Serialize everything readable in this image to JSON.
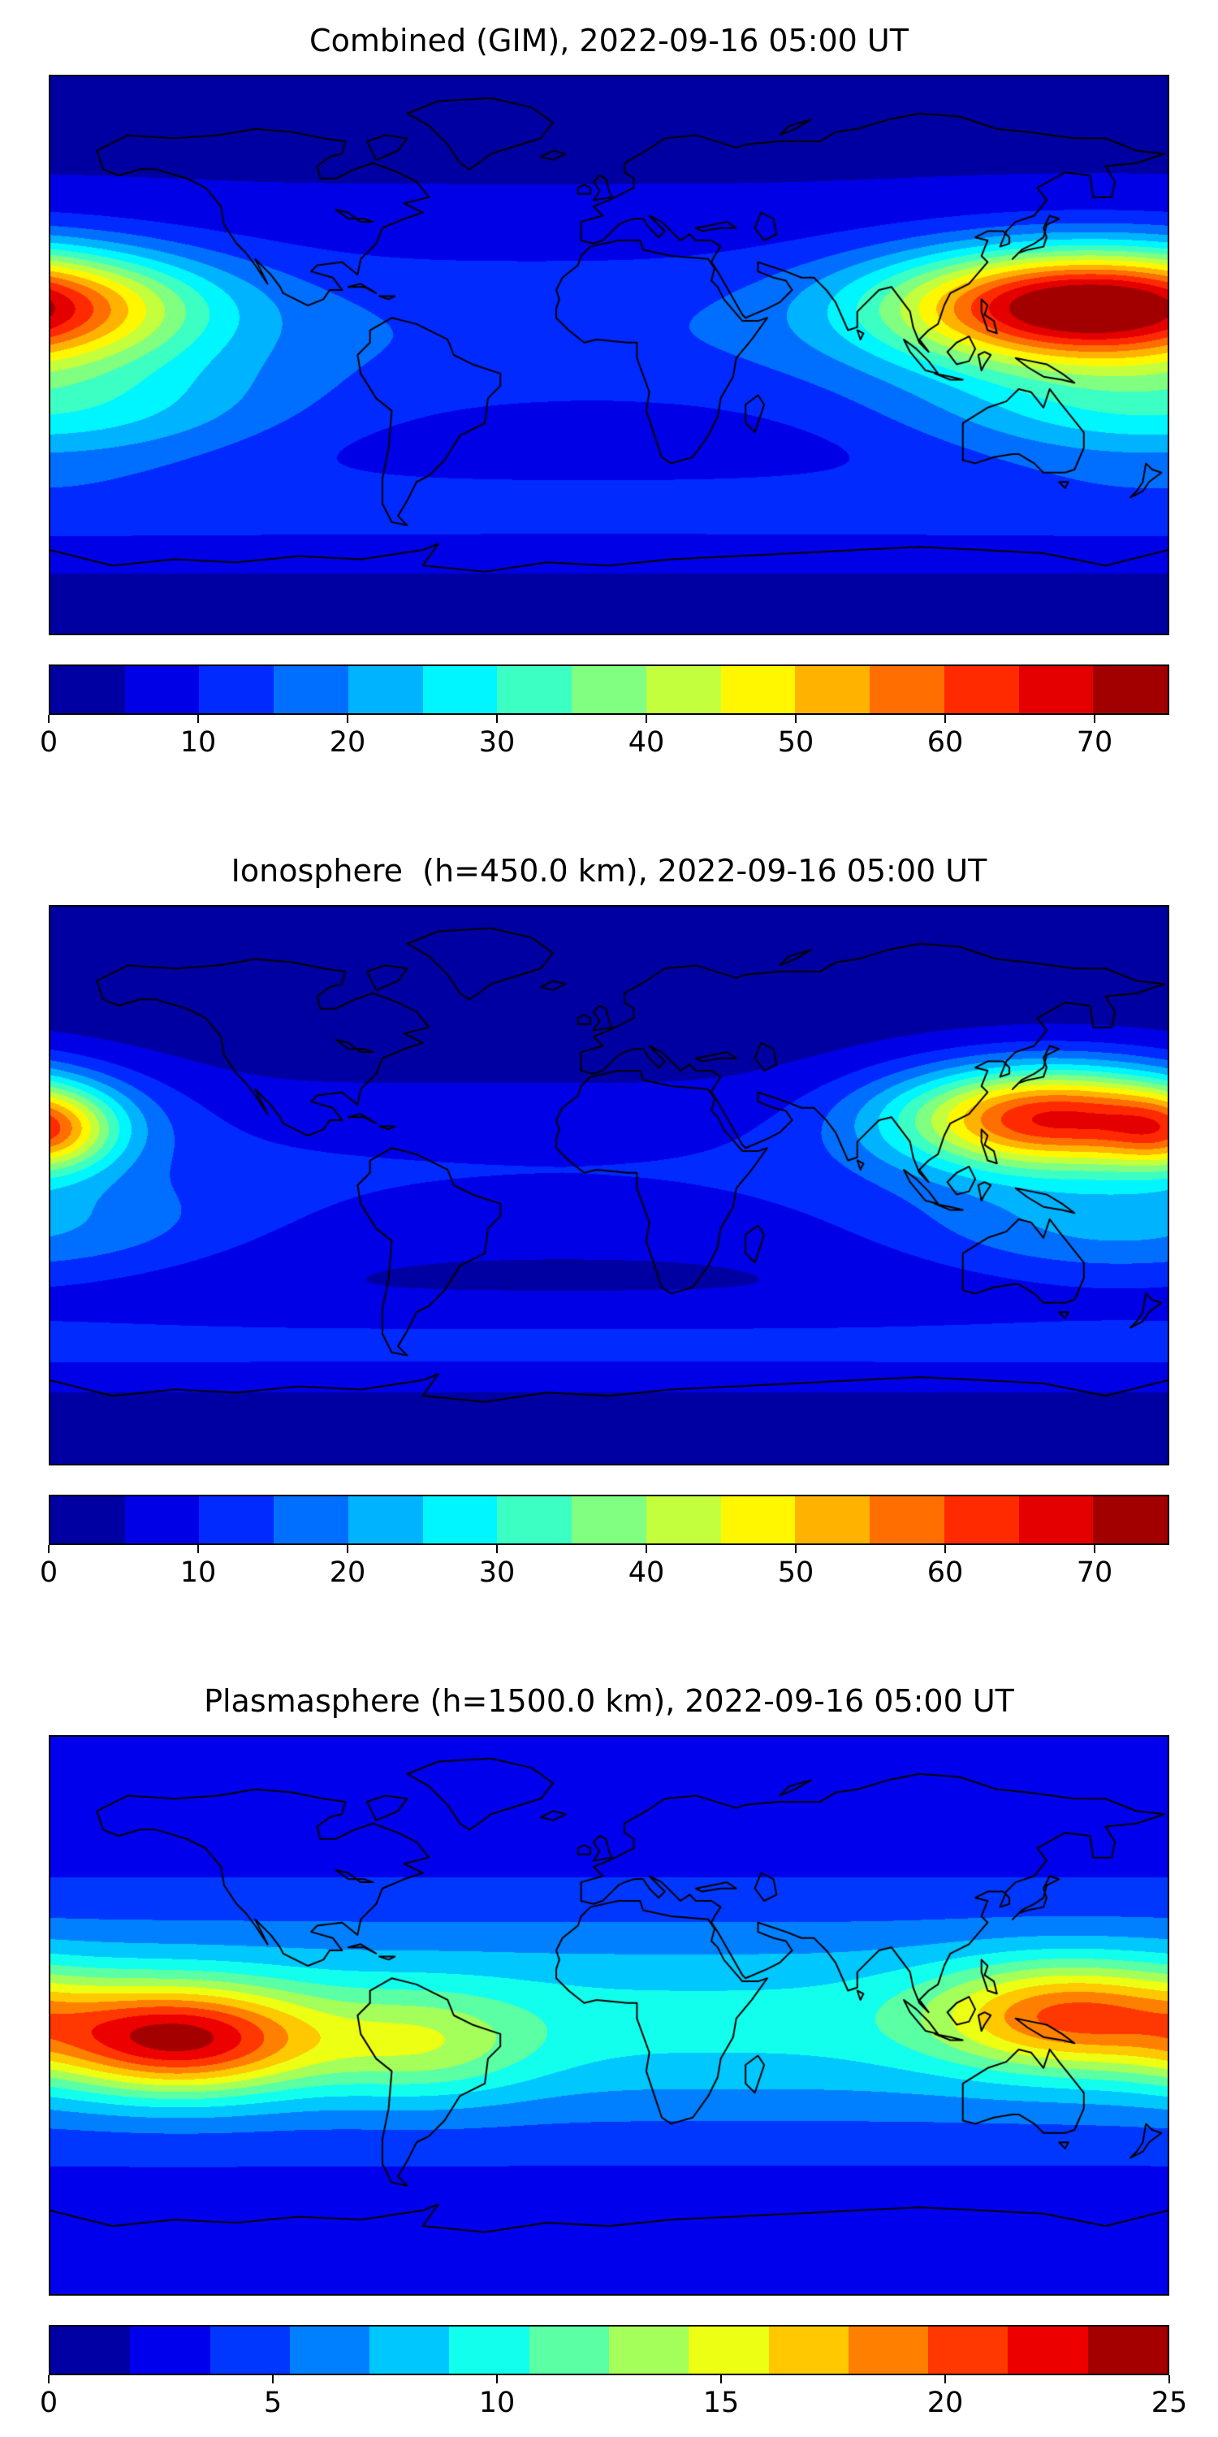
{
  "page": {
    "background": "#ffffff",
    "text_color": "#000000"
  },
  "chart_data": [
    {
      "type": "heatmap",
      "subtype": "filled-contour-world-map",
      "title": "Combined (GIM), 2022-09-16 05:00 UT",
      "projection": "equirectangular",
      "lon_range": [
        -180,
        180
      ],
      "lat_range": [
        -90,
        90
      ],
      "colormap": "jet",
      "coastlines": true,
      "grid": false,
      "vmin": 0,
      "vmax": 75,
      "n_bands": 15,
      "colorbar_orientation": "horizontal",
      "colorbar_ticks": [
        0,
        10,
        20,
        30,
        40,
        50,
        60,
        70
      ],
      "field": {
        "base": 4,
        "blobs": [
          {
            "amp": 66,
            "lon": 155,
            "lat": 16,
            "slon": 45,
            "slat": 13,
            "feature": "dayside equatorial-anomaly maximum over East Asia / West Pacific, peak above 75"
          },
          {
            "amp": 10,
            "lon": 0,
            "lat": 8,
            "slon": 9999,
            "slat": 22,
            "feature": "global low-latitude band near 10-15"
          },
          {
            "amp": 20,
            "lon": 175,
            "lat": -18,
            "slon": 55,
            "slat": 14,
            "feature": "southern tropical Pacific enhancement near 30"
          },
          {
            "amp": 8,
            "lon": 0,
            "lat": -50,
            "slon": 9999,
            "slat": 10,
            "feature": "southern mid-latitude band near 12"
          }
        ]
      }
    },
    {
      "type": "heatmap",
      "subtype": "filled-contour-world-map",
      "title": "Ionosphere  (h=450.0 km), 2022-09-16 05:00 UT",
      "projection": "equirectangular",
      "lon_range": [
        -180,
        180
      ],
      "lat_range": [
        -90,
        90
      ],
      "colormap": "jet",
      "coastlines": true,
      "grid": false,
      "vmin": 0,
      "vmax": 75,
      "n_bands": 15,
      "colorbar_orientation": "horizontal",
      "colorbar_ticks": [
        0,
        10,
        20,
        30,
        40,
        50,
        60,
        70
      ],
      "field": {
        "base": 2,
        "blobs": [
          {
            "amp": 58,
            "lon": 143,
            "lat": 22,
            "slon": 36,
            "slat": 12,
            "feature": "dayside ionospheric maximum over East Asia near 65"
          },
          {
            "amp": 22,
            "lon": -179,
            "lat": 17,
            "slon": 14,
            "slat": 9,
            "feature": "secondary maximum at the dateline near 60"
          },
          {
            "amp": 8,
            "lon": 0,
            "lat": 5,
            "slon": 9999,
            "slat": 20,
            "feature": "equatorial band near 10"
          },
          {
            "amp": 14,
            "lon": 165,
            "lat": -15,
            "slon": 50,
            "slat": 13,
            "feature": "southern tropical enhancement near 25"
          },
          {
            "amp": 9,
            "lon": 0,
            "lat": -52,
            "slon": 9999,
            "slat": 10,
            "feature": "southern mid-latitude band near 11"
          }
        ]
      }
    },
    {
      "type": "heatmap",
      "subtype": "filled-contour-world-map",
      "title": "Plasmasphere (h=1500.0 km), 2022-09-16 05:00 UT",
      "projection": "equirectangular",
      "lon_range": [
        -180,
        180
      ],
      "lat_range": [
        -90,
        90
      ],
      "colormap": "jet",
      "coastlines": true,
      "grid": false,
      "vmin": 0,
      "vmax": 25,
      "n_bands": 14,
      "colorbar_orientation": "horizontal",
      "colorbar_ticks": [
        0,
        5,
        10,
        15,
        20,
        25
      ],
      "field": {
        "base": 2.5,
        "blobs": [
          {
            "amp": 14.5,
            "lon": -138,
            "lat": -8,
            "slon": 30,
            "slat": 12,
            "feature": "plasmaspheric maximum over central/east Pacific near 24"
          },
          {
            "amp": 10.5,
            "lon": 148,
            "lat": 0,
            "slon": 30,
            "slat": 12,
            "feature": "western Pacific maximum near 20"
          },
          {
            "amp": 7,
            "lon": 0,
            "lat": -2,
            "slon": 9999,
            "slat": 24,
            "feature": "broad equatorial plasmaspheric band near 9"
          },
          {
            "amp": 5,
            "lon": -60,
            "lat": -10,
            "slon": 25,
            "slat": 12,
            "feature": "South America enhancement near 14"
          }
        ]
      }
    }
  ]
}
